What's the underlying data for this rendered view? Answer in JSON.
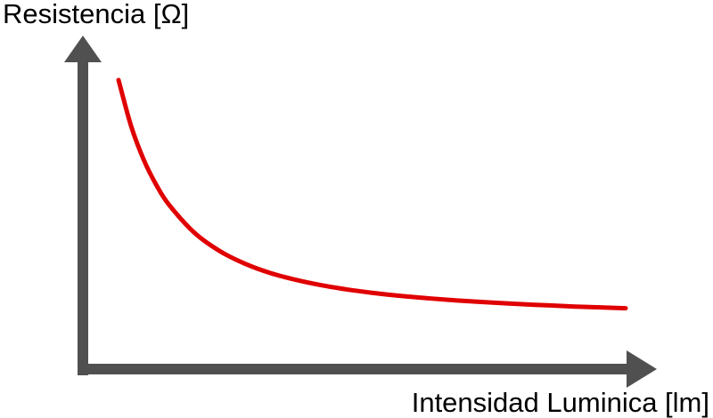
{
  "chart_data": {
    "type": "line",
    "title": "",
    "xlabel": "Intensidad Luminica [lm]",
    "ylabel": "Resistencia [Ω]",
    "x": [
      0.0,
      0.5,
      1.0,
      1.5,
      2.0,
      3.0,
      4.0,
      5.0,
      6.0,
      7.0,
      8.0,
      9.0,
      10.0,
      11.0,
      12.0,
      13.0,
      14.0,
      15.0,
      16.0,
      17.0,
      18.0,
      19.0,
      20.0
    ],
    "series": [
      {
        "name": "Resistencia",
        "color": "#e00000",
        "values": [
          100.0,
          83.5,
          71.5,
          62.5,
          55.5,
          45.6,
          39.1,
          34.6,
          31.3,
          28.9,
          27.0,
          25.5,
          24.3,
          23.3,
          22.5,
          21.8,
          21.2,
          20.7,
          20.2,
          19.8,
          19.4,
          19.1,
          18.8
        ]
      }
    ],
    "xlim": [
      0,
      20
    ],
    "ylim": [
      0,
      100
    ],
    "grid": false,
    "legend": "none",
    "colors": {
      "axis": "#505050",
      "curve": "#e00000"
    }
  }
}
